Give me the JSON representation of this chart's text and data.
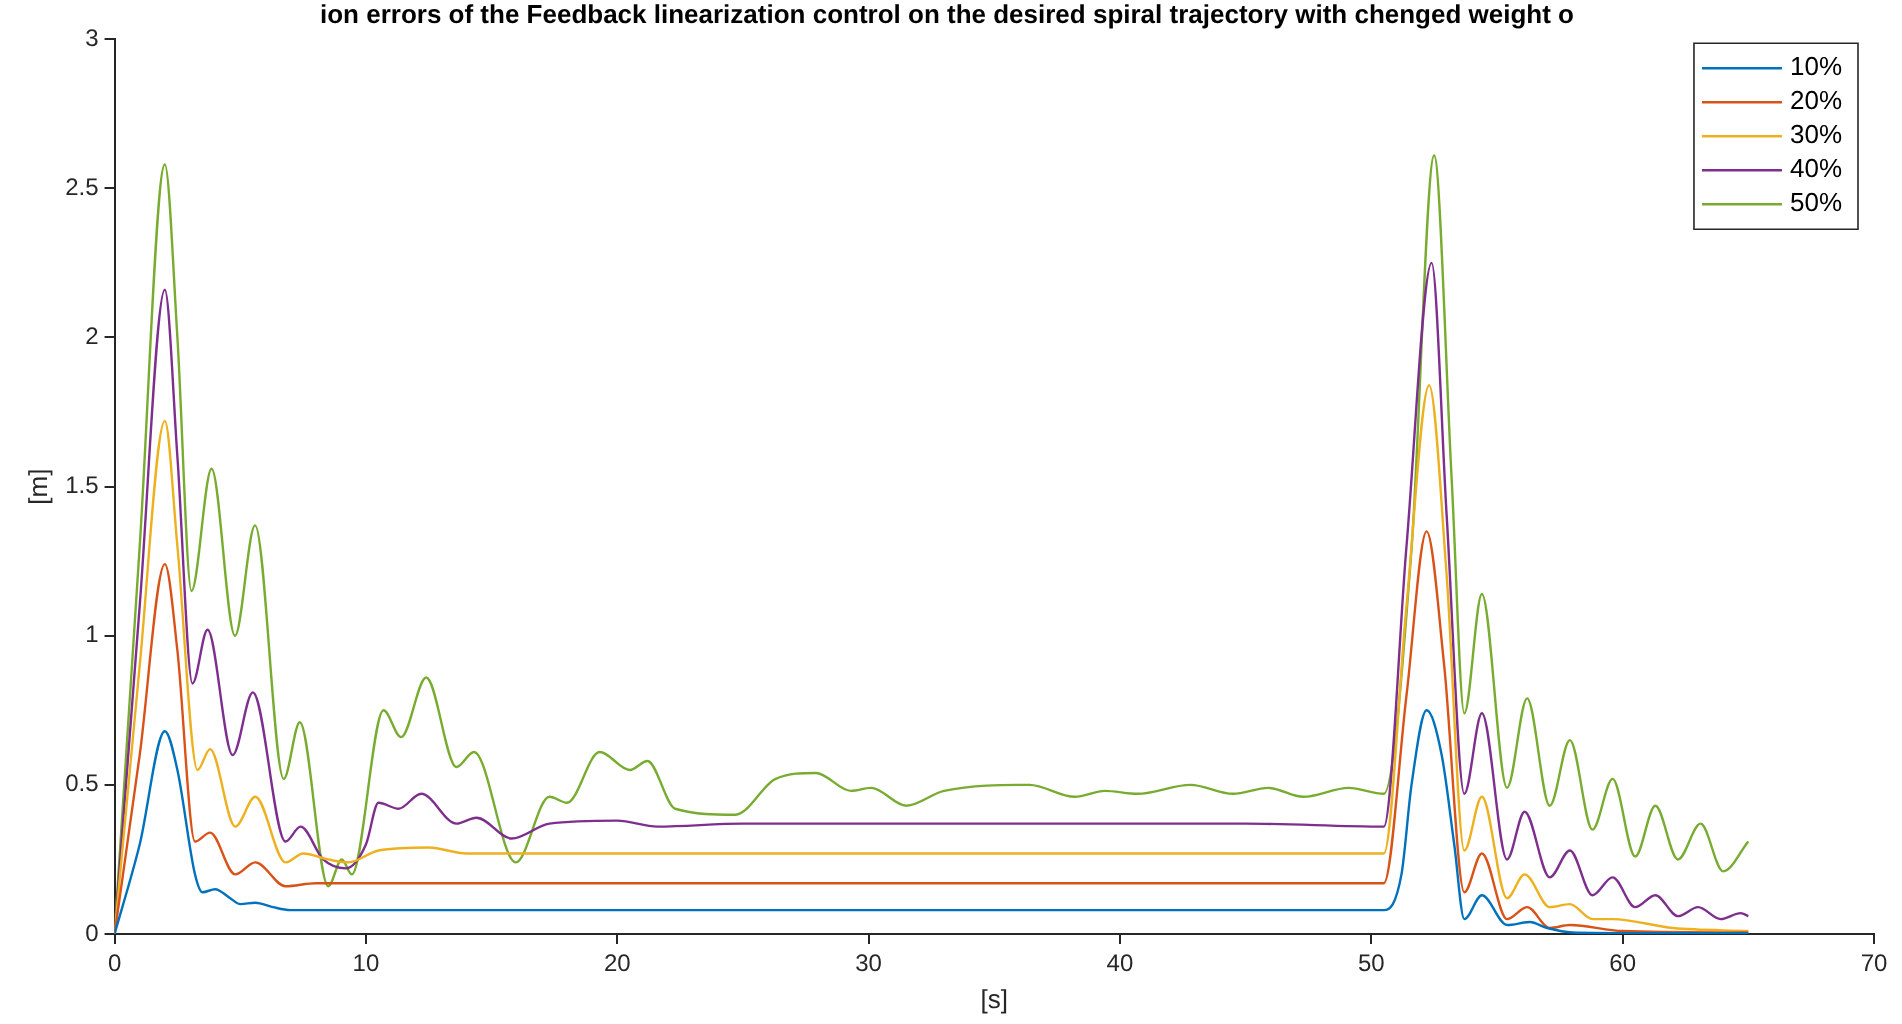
{
  "chart_data": {
    "type": "line",
    "title": "ion errors of the Feedback linearization control on the desired spiral trajectory with chenged weight o",
    "xlabel": "[s]",
    "ylabel": "[m]",
    "xlim": [
      0,
      70
    ],
    "xticks": [
      0,
      10,
      20,
      30,
      40,
      50,
      60,
      70
    ],
    "ylim": [
      0,
      3
    ],
    "yticks": [
      0,
      0.5,
      1,
      1.5,
      2,
      2.5,
      3
    ],
    "grid": false,
    "legend": "top right",
    "marker": "none",
    "line_style": "solid",
    "series": [
      {
        "name": "10%",
        "color": "#0072bd",
        "x": [
          0,
          1,
          2,
          2.5,
          3.2,
          3.5,
          4,
          4.6,
          5,
          5.6,
          6.3,
          7,
          10,
          20,
          30,
          40,
          50.5,
          51.2,
          51.6,
          52.2,
          52.8,
          53.3,
          53.7,
          54.4,
          55.4,
          56.3,
          57,
          58,
          60,
          65
        ],
        "values": [
          0,
          0.3,
          0.68,
          0.55,
          0.2,
          0.14,
          0.15,
          0.12,
          0.1,
          0.105,
          0.09,
          0.08,
          0.08,
          0.08,
          0.08,
          0.08,
          0.08,
          0.2,
          0.5,
          0.75,
          0.6,
          0.3,
          0.05,
          0.13,
          0.03,
          0.04,
          0.02,
          0.005,
          0.003,
          0.003
        ]
      },
      {
        "name": "20%",
        "color": "#d95319",
        "x": [
          0,
          1,
          2,
          2.5,
          3.2,
          3.8,
          4.8,
          5.6,
          6.8,
          8,
          10,
          20,
          30,
          40,
          50.5,
          51.4,
          52.2,
          52.9,
          53.7,
          54.4,
          55.4,
          56.2,
          57.1,
          57.9,
          60,
          65
        ],
        "values": [
          0,
          0.6,
          1.24,
          0.95,
          0.31,
          0.34,
          0.2,
          0.24,
          0.16,
          0.17,
          0.17,
          0.17,
          0.17,
          0.17,
          0.17,
          0.8,
          1.35,
          0.9,
          0.14,
          0.27,
          0.05,
          0.09,
          0.02,
          0.03,
          0.01,
          0.005
        ]
      },
      {
        "name": "30%",
        "color": "#edb120",
        "x": [
          0,
          1,
          2,
          2.5,
          3.3,
          3.8,
          4.8,
          5.6,
          6.8,
          7.5,
          8.5,
          9.3,
          10.5,
          12.5,
          14,
          20,
          30,
          40,
          50.5,
          51.4,
          52.3,
          53,
          53.7,
          54.4,
          55.4,
          56.1,
          57.1,
          57.9,
          58.8,
          59.6,
          62,
          65
        ],
        "values": [
          0,
          0.9,
          1.72,
          1.3,
          0.55,
          0.62,
          0.36,
          0.46,
          0.24,
          0.27,
          0.25,
          0.24,
          0.28,
          0.29,
          0.27,
          0.27,
          0.27,
          0.27,
          0.27,
          1.1,
          1.84,
          1.2,
          0.28,
          0.46,
          0.12,
          0.2,
          0.09,
          0.1,
          0.05,
          0.05,
          0.02,
          0.01
        ]
      },
      {
        "name": "40%",
        "color": "#7e2f8e",
        "x": [
          0,
          1,
          2,
          2.5,
          3.1,
          3.7,
          4.7,
          5.5,
          6.8,
          7.4,
          8.3,
          9.2,
          10,
          10.5,
          11.3,
          12.2,
          13.6,
          14.4,
          15.8,
          17.3,
          20,
          21.6,
          25,
          30,
          35,
          40,
          45,
          50.5,
          51.4,
          52.4,
          53,
          53.7,
          54.4,
          55.4,
          56.1,
          57.1,
          57.9,
          58.8,
          59.6,
          60.5,
          61.3,
          62.2,
          63,
          63.9,
          64.7,
          65
        ],
        "values": [
          0,
          1.1,
          2.16,
          1.6,
          0.84,
          1.02,
          0.6,
          0.81,
          0.31,
          0.36,
          0.25,
          0.22,
          0.3,
          0.44,
          0.42,
          0.47,
          0.37,
          0.39,
          0.32,
          0.37,
          0.38,
          0.36,
          0.37,
          0.37,
          0.37,
          0.37,
          0.37,
          0.36,
          1.3,
          2.25,
          1.4,
          0.47,
          0.74,
          0.25,
          0.41,
          0.19,
          0.28,
          0.13,
          0.19,
          0.09,
          0.13,
          0.06,
          0.09,
          0.05,
          0.07,
          0.06
        ]
      },
      {
        "name": "50%",
        "color": "#77ac30",
        "x": [
          0,
          1,
          2,
          2.5,
          3.06,
          3.86,
          4.79,
          5.59,
          6.73,
          7.37,
          8.5,
          9.04,
          9.44,
          10.7,
          11.4,
          12.4,
          13.6,
          14.3,
          15.96,
          17.3,
          18,
          19.3,
          20.5,
          21.2,
          22.3,
          24.7,
          26.3,
          27.9,
          29.3,
          30.1,
          31.5,
          33,
          36.4,
          38.2,
          39.4,
          40.7,
          42.8,
          44.5,
          45.9,
          47.3,
          49.1,
          50.5,
          51.6,
          52.5,
          53.2,
          53.7,
          54.4,
          55.4,
          56.2,
          57.1,
          57.9,
          58.8,
          59.6,
          60.5,
          61.3,
          62.2,
          63.1,
          64,
          65
        ],
        "values": [
          0,
          1.3,
          2.58,
          2,
          1.15,
          1.56,
          1,
          1.37,
          0.52,
          0.71,
          0.16,
          0.25,
          0.2,
          0.75,
          0.66,
          0.86,
          0.56,
          0.61,
          0.24,
          0.46,
          0.44,
          0.61,
          0.55,
          0.58,
          0.42,
          0.4,
          0.52,
          0.54,
          0.48,
          0.49,
          0.43,
          0.48,
          0.5,
          0.46,
          0.48,
          0.47,
          0.5,
          0.47,
          0.49,
          0.46,
          0.49,
          0.47,
          1.29,
          2.61,
          1.52,
          0.74,
          1.14,
          0.49,
          0.79,
          0.43,
          0.65,
          0.35,
          0.52,
          0.26,
          0.43,
          0.25,
          0.37,
          0.21,
          0.31
        ]
      }
    ]
  }
}
